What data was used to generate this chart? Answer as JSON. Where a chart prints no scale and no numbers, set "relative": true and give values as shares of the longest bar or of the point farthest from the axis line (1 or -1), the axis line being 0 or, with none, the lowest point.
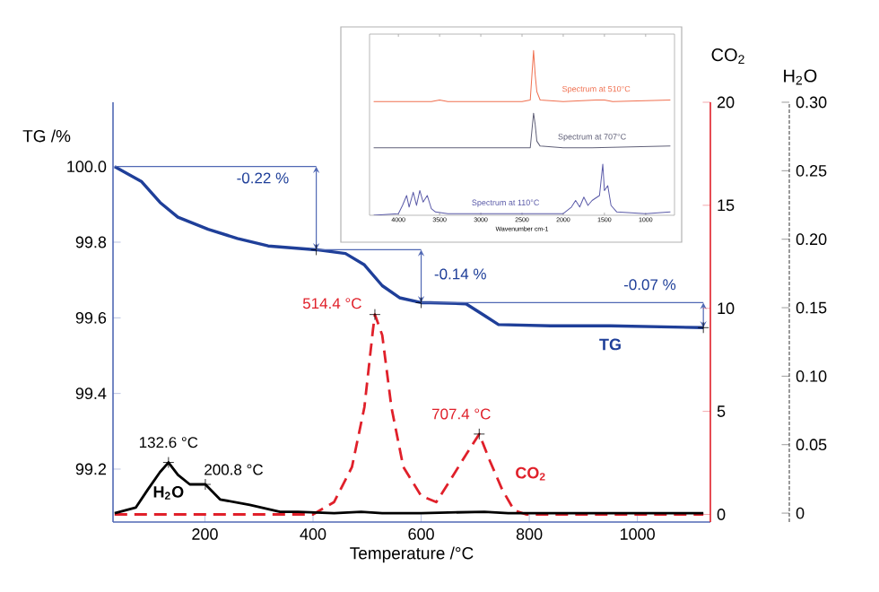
{
  "chart_data": [
    {
      "type": "line",
      "xlabel": "Temperature /°C",
      "ylabel": "TG /%",
      "y2label": "CO$_{2}$",
      "y3label": "H$_{2}$O",
      "xlim": [
        30,
        1135
      ],
      "xticks": [
        200,
        400,
        600,
        800,
        1000
      ],
      "ylim": [
        99.06,
        100.17
      ],
      "yticks": [
        99.2,
        99.4,
        99.6,
        99.8,
        {
          "value": 100,
          "label": "100.0"
        }
      ],
      "y2lim": [
        -0.37,
        20
      ],
      "y2ticks": [
        0,
        5,
        10,
        15,
        20
      ],
      "y3lim": [
        -0.0065,
        0.3
      ],
      "y3ticks": [
        0,
        0.05,
        {
          "value": 0.1,
          "label": "0.10"
        },
        0.15,
        {
          "value": 0.2,
          "label": "0.20"
        },
        0.25,
        {
          "value": 0.3,
          "label": "0.30"
        }
      ],
      "series": [
        {
          "name": "TG",
          "color": "#1f3f99",
          "line_style": "solid",
          "x": [
            33,
            83,
            117,
            150,
            206,
            260,
            317,
            406,
            460,
            495,
            528,
            560,
            600,
            617,
            683,
            717,
            743,
            839,
            950,
            1122
          ],
          "values": [
            100.0,
            99.96,
            99.905,
            99.866,
            99.834,
            99.81,
            99.79,
            99.78,
            99.77,
            99.74,
            99.685,
            99.653,
            99.64,
            99.64,
            99.637,
            99.606,
            99.582,
            99.579,
            99.579,
            99.574
          ]
        },
        {
          "name": "CO$_{2}$",
          "color": "#e0202a",
          "line_style": "dashed",
          "axis": "y2",
          "x": [
            33,
            400,
            439,
            472,
            495,
            511,
            514.4,
            528,
            545,
            567,
            600,
            628,
            650,
            683,
            707.4,
            727,
            750,
            772,
            794,
            1122
          ],
          "values": [
            0,
            0,
            0.6,
            2.3,
            5.2,
            9.0,
            9.7,
            8.7,
            5.2,
            2.3,
            0.9,
            0.6,
            1.5,
            2.9,
            3.9,
            2.6,
            1.2,
            0.2,
            0,
            0
          ]
        },
        {
          "name": "H$_{2}$O",
          "color": "#000000",
          "line_style": "solid",
          "axis": "y3",
          "x": [
            33,
            72,
            94,
            117,
            132.6,
            150,
            172,
            200.8,
            228,
            283,
            339,
            372,
            439,
            489,
            528,
            600,
            717,
            761,
            1122
          ],
          "values": [
            0,
            0.004,
            0.017,
            0.03,
            0.037,
            0.028,
            0.021,
            0.021,
            0.01,
            0.006,
            0.001,
            0.001,
            0,
            0.001,
            0,
            0,
            0.001,
            0,
            0
          ]
        }
      ],
      "annotations": [
        "-0.22 %",
        "-0.14 %",
        "-0.07 %",
        "514.4 °C",
        "707.4 °C",
        "132.6 °C",
        "200.8 °C"
      ]
    },
    {
      "type": "line",
      "relative": true,
      "xlabel": "Wavenumber cm-1",
      "xlim": [
        4350,
        650
      ],
      "xticks": [
        4000,
        3500,
        3000,
        2500,
        2000,
        1500,
        1000
      ],
      "series": [
        {
          "name": "Spectrum at 510°C",
          "color": "#f07050",
          "x": [
            4300,
            3600,
            3500,
            3400,
            2500,
            2400,
            2360,
            2340,
            2320,
            2280,
            2000,
            1600,
            1500,
            1400,
            700
          ],
          "values": [
            0.69,
            0.69,
            0.7,
            0.69,
            0.69,
            0.7,
            1.0,
            0.85,
            0.75,
            0.7,
            0.69,
            0.7,
            0.7,
            0.69,
            0.7
          ]
        },
        {
          "name": "Spectrum at 707°C",
          "color": "#606078",
          "x": [
            4300,
            2400,
            2360,
            2340,
            2320,
            2280,
            2000,
            1650,
            700
          ],
          "values": [
            0.41,
            0.41,
            0.62,
            0.55,
            0.45,
            0.42,
            0.41,
            0.41,
            0.42
          ]
        },
        {
          "name": "Spectrum at 110°C",
          "color": "#5a5aa8",
          "x": [
            4300,
            4000,
            3950,
            3900,
            3870,
            3820,
            3780,
            3740,
            3700,
            3650,
            3600,
            3550,
            3400,
            2700,
            2000,
            1900,
            1850,
            1800,
            1750,
            1700,
            1650,
            1560,
            1520,
            1500,
            1460,
            1420,
            1350,
            1000,
            700
          ],
          "values": [
            0,
            0.01,
            0.06,
            0.12,
            0.05,
            0.14,
            0.06,
            0.15,
            0.08,
            0.12,
            0.04,
            0.02,
            0.01,
            0.01,
            0.01,
            0.05,
            0.09,
            0.05,
            0.11,
            0.06,
            0.09,
            0.12,
            0.31,
            0.15,
            0.18,
            0.06,
            0.02,
            0.01,
            0.02
          ]
        }
      ]
    }
  ]
}
